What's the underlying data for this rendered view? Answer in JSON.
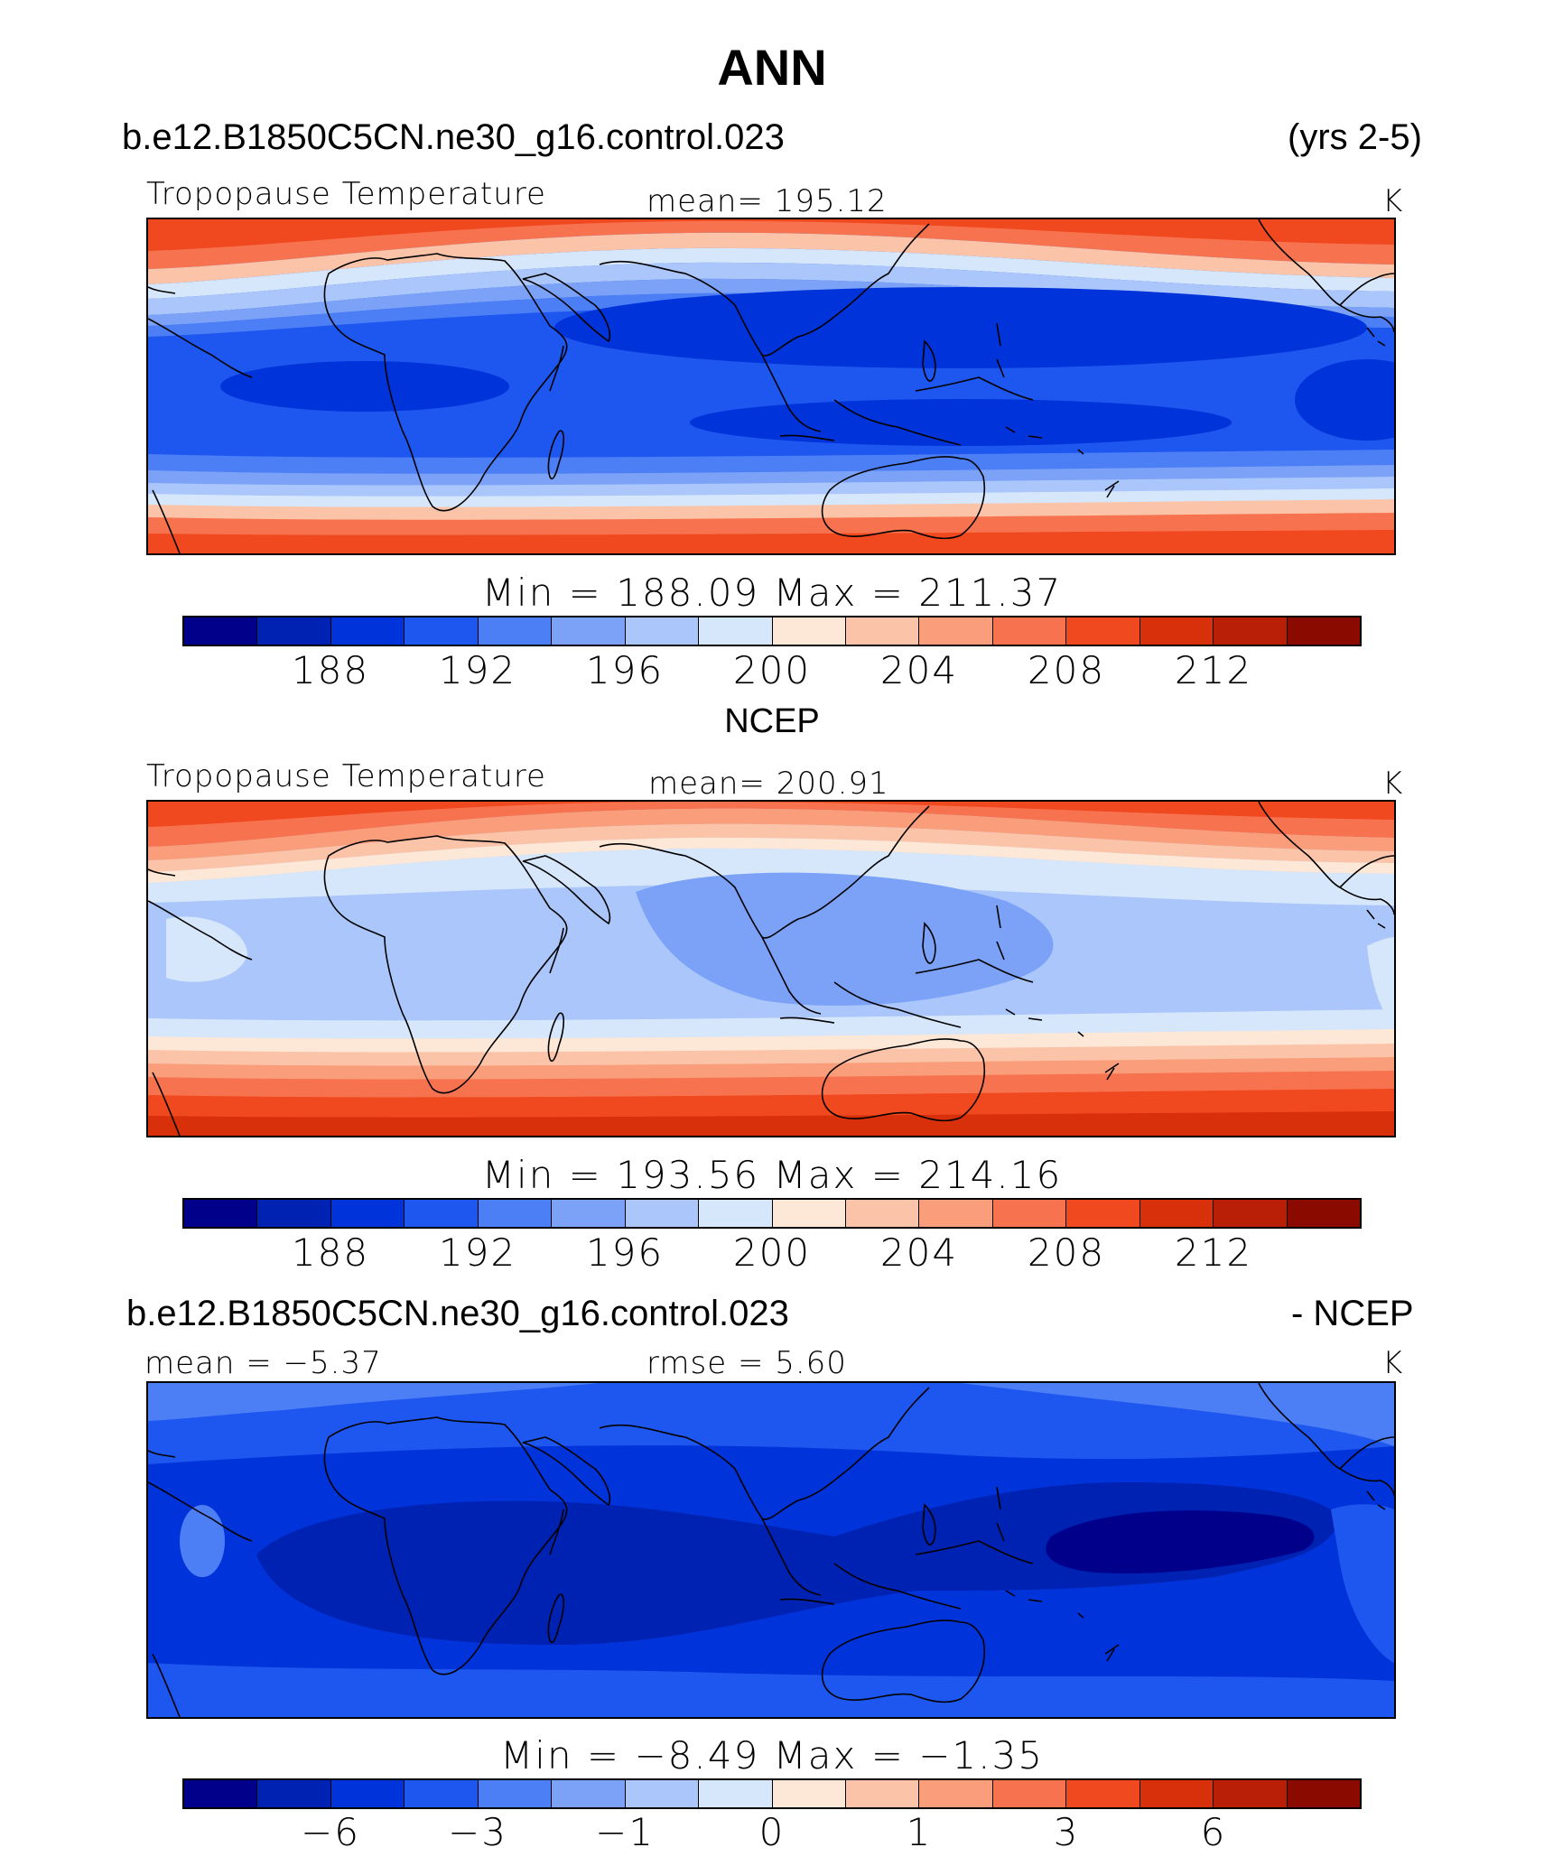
{
  "title": "ANN",
  "case_name": "b.e12.B1850C5CN.ne30_g16.control.023",
  "years": "(yrs 2-5)",
  "colors": [
    "#00008a",
    "#0022b2",
    "#0033d9",
    "#1e56f0",
    "#4c7ef5",
    "#7ba2f7",
    "#aac6fa",
    "#d6e6fb",
    "#fde7d6",
    "#fbc4a8",
    "#f99d7a",
    "#f7734f",
    "#f0481f",
    "#d9300c",
    "#b81f06",
    "#8b0a00"
  ],
  "panels": [
    {
      "left_label": "Tropopause Temperature",
      "center_label": "mean=  195.12",
      "units": "K",
      "minmax": "Min  =  188.09  Max  =  211.37",
      "ticks": [
        "188",
        "192",
        "196",
        "200",
        "204",
        "208",
        "212"
      ]
    },
    {
      "subtitle": "NCEP",
      "left_label": "Tropopause Temperature",
      "center_label": "mean=  200.91",
      "units": "K",
      "minmax": "Min  =  193.56  Max  =  214.16",
      "ticks": [
        "188",
        "192",
        "196",
        "200",
        "204",
        "208",
        "212"
      ]
    },
    {
      "header_left": "b.e12.B1850C5CN.ne30_g16.control.023",
      "header_right": "- NCEP",
      "left_label": "mean  =    −5.37",
      "center_label": "rmse  =     5.60",
      "units": "K",
      "minmax": "Min  =    −8.49  Max  =    −1.35",
      "ticks": [
        "−6",
        "−3",
        "−1",
        "0",
        "1",
        "3",
        "6"
      ]
    }
  ],
  "chart_data": [
    {
      "type": "heatmap",
      "title": "Tropopause Temperature",
      "units": "K",
      "mean": 195.12,
      "min": 188.09,
      "max": 211.37,
      "contour_levels": [
        186,
        188,
        190,
        192,
        194,
        196,
        198,
        200,
        202,
        204,
        206,
        208,
        210,
        212,
        214
      ],
      "colorbar_ticks": [
        188,
        192,
        196,
        200,
        204,
        208,
        212
      ]
    },
    {
      "type": "heatmap",
      "title": "Tropopause Temperature",
      "units": "K",
      "mean": 200.91,
      "min": 193.56,
      "max": 214.16,
      "contour_levels": [
        186,
        188,
        190,
        192,
        194,
        196,
        198,
        200,
        202,
        204,
        206,
        208,
        210,
        212,
        214
      ],
      "colorbar_ticks": [
        188,
        192,
        196,
        200,
        204,
        208,
        212
      ]
    },
    {
      "type": "heatmap",
      "title": "b.e12.B1850C5CN.ne30_g16.control.023 - NCEP",
      "units": "K",
      "mean": -5.37,
      "rmse": 5.6,
      "min": -8.49,
      "max": -1.35,
      "contour_levels": [
        -8,
        -6,
        -4,
        -3,
        -2,
        -1,
        -0.5,
        0,
        0.5,
        1,
        2,
        3,
        4,
        6,
        8
      ],
      "colorbar_ticks": [
        -6,
        -3,
        -1,
        0,
        1,
        3,
        6
      ]
    }
  ]
}
